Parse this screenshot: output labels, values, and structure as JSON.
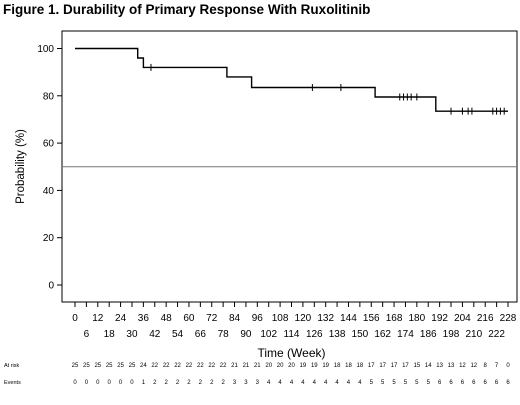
{
  "title": "Figure 1. Durability of Primary Response With Ruxolitinib",
  "chart_data": {
    "type": "line",
    "title": "Figure 1. Durability of Primary Response With Ruxolitinib",
    "xlabel": "Time (Week)",
    "ylabel": "Probability (%)",
    "xlim": [
      0,
      228
    ],
    "ylim": [
      -5,
      105
    ],
    "grid": false,
    "x_ticks_top": [
      "0",
      "12",
      "24",
      "36",
      "48",
      "60",
      "72",
      "84",
      "96",
      "108",
      "120",
      "132",
      "144",
      "156",
      "168",
      "180",
      "192",
      "204",
      "216",
      "228"
    ],
    "x_ticks_bottom": [
      "6",
      "18",
      "30",
      "42",
      "54",
      "66",
      "78",
      "90",
      "102",
      "114",
      "126",
      "138",
      "150",
      "162",
      "174",
      "186",
      "198",
      "210",
      "222"
    ],
    "y_ticks": [
      "0",
      "20",
      "40",
      "60",
      "80",
      "100"
    ],
    "series": [
      {
        "values": [
          [
            0,
            100
          ],
          [
            33,
            100
          ],
          [
            33,
            96
          ],
          [
            36,
            96
          ],
          [
            36,
            92
          ],
          [
            80,
            92
          ],
          [
            80,
            88
          ],
          [
            93,
            88
          ],
          [
            93,
            83.5
          ],
          [
            158,
            83.5
          ],
          [
            158,
            79.5
          ],
          [
            190,
            79.5
          ],
          [
            190,
            73.5
          ],
          [
            228,
            73.5
          ]
        ],
        "censored": [
          [
            40,
            92
          ],
          [
            125,
            83.5
          ],
          [
            140,
            83.5
          ],
          [
            171,
            79.5
          ],
          [
            173,
            79.5
          ],
          [
            175,
            79.5
          ],
          [
            177,
            79.5
          ],
          [
            180,
            79.5
          ],
          [
            198,
            73.5
          ],
          [
            204,
            73.5
          ],
          [
            207,
            73.5
          ],
          [
            209,
            73.5
          ],
          [
            220,
            73.5
          ],
          [
            222,
            73.5
          ],
          [
            224,
            73.5
          ],
          [
            226,
            73.5
          ]
        ],
        "color": "#000000"
      }
    ],
    "reference_line": {
      "y": 50,
      "color": "#777777"
    },
    "risk_table": {
      "weeks": [
        0,
        6,
        12,
        18,
        24,
        30,
        36,
        42,
        48,
        54,
        60,
        66,
        72,
        78,
        84,
        90,
        96,
        102,
        108,
        114,
        120,
        126,
        132,
        138,
        144,
        150,
        156,
        162,
        168,
        174,
        180,
        186,
        192,
        198,
        204,
        210,
        216,
        222,
        228
      ],
      "rows": [
        {
          "label": "At risk",
          "values": [
            "25",
            "25",
            "25",
            "25",
            "25",
            "25",
            "24",
            "22",
            "22",
            "22",
            "22",
            "22",
            "22",
            "22",
            "21",
            "21",
            "21",
            "20",
            "20",
            "20",
            "19",
            "19",
            "19",
            "18",
            "18",
            "18",
            "17",
            "17",
            "17",
            "17",
            "15",
            "14",
            "13",
            "13",
            "12",
            "12",
            "8",
            "7",
            "0"
          ]
        },
        {
          "label": "Events",
          "values": [
            "0",
            "0",
            "0",
            "0",
            "0",
            "0",
            "1",
            "2",
            "2",
            "2",
            "2",
            "2",
            "2",
            "2",
            "3",
            "3",
            "3",
            "4",
            "4",
            "4",
            "4",
            "4",
            "4",
            "4",
            "4",
            "4",
            "5",
            "5",
            "5",
            "5",
            "5",
            "5",
            "6",
            "6",
            "6",
            "6",
            "6",
            "6",
            "6"
          ]
        }
      ]
    }
  }
}
